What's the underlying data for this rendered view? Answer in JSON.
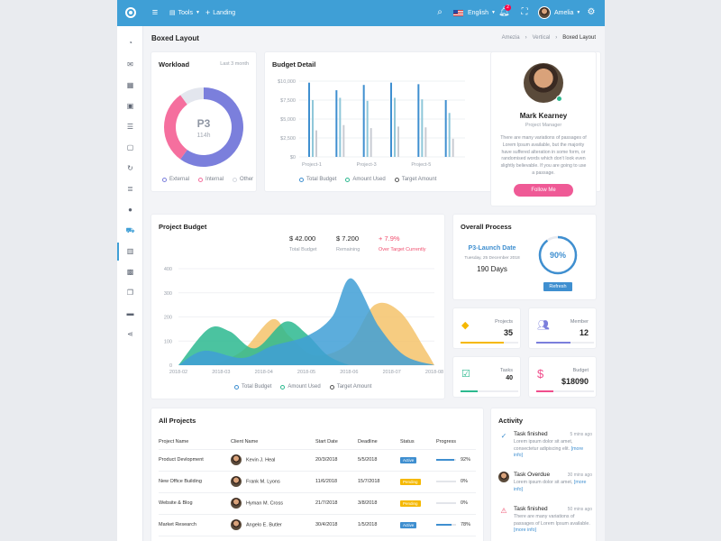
{
  "topbar": {
    "tools": "Tools",
    "landing": "Landing",
    "language": "English",
    "notification_count": "2",
    "user_name": "Amelia"
  },
  "page": {
    "title": "Boxed Layout",
    "breadcrumb": [
      "Amezia",
      "Vertical",
      "Boxed Layout"
    ]
  },
  "workload": {
    "title": "Workload",
    "period": "Last 3 month",
    "center_main": "P3",
    "center_sub": "114h",
    "legend": [
      "External",
      "Internal",
      "Other"
    ],
    "colors": {
      "external": "#7b7fdc",
      "internal": "#f56f9e",
      "other": "#e3e6ee"
    }
  },
  "budget_detail": {
    "title": "Budget Detail",
    "legend": [
      "Total Budget",
      "Amount Used",
      "Target Amount"
    ]
  },
  "profile": {
    "name": "Mark Kearney",
    "role": "Project Manager",
    "bio": "There are many variations of passages of Lorem Ipsum available, but the majority have suffered alteration in some form, or randomised words which don't look even slightly believable. If you are going to use a passage.",
    "follow_label": "Follow Me"
  },
  "project_budget": {
    "title": "Project Budget",
    "stats": [
      {
        "value": "$ 42.000",
        "label": "Total Budget"
      },
      {
        "value": "$ 7.200",
        "label": "Remaining"
      },
      {
        "value": "+ 7.9%",
        "label": "Over Target Currently"
      }
    ],
    "legend": [
      "Total Budget",
      "Amount Used",
      "Target Amount"
    ]
  },
  "overall": {
    "title": "Overall Process",
    "launch_title": "P3-Launch Date",
    "launch_date": "Tuesday, 25 December 2018",
    "days": "190 Days",
    "percent_label": "90%",
    "percent_value": 90,
    "refresh_label": "Refresh"
  },
  "stats": [
    {
      "label": "Projects",
      "value": "35",
      "icon": "gem-icon",
      "color": "#f5b800",
      "fill": 0.75
    },
    {
      "label": "Member",
      "value": "12",
      "icon": "users-icon",
      "color": "#7b7fdc",
      "fill": 0.6
    },
    {
      "label": "Tasks",
      "value": "40",
      "icon": "checklist-icon",
      "color": "#2cb98f",
      "fill": 0.3
    },
    {
      "label": "Budget",
      "value": "$18090",
      "icon": "dollar-icon",
      "color": "#f04e8c",
      "fill": 0.3
    }
  ],
  "projects": {
    "title": "All Projects",
    "headers": [
      "Project Name",
      "Client Name",
      "Start Date",
      "Deadline",
      "Status",
      "Progress"
    ],
    "rows": [
      {
        "name": "Product Devlopment",
        "client": "Kevin J. Heal",
        "start": "20/3/2018",
        "deadline": "5/5/2018",
        "status": "Active",
        "status_color": "#3f8fd0",
        "progress": 92,
        "progress_label": "92%"
      },
      {
        "name": "New Office Building",
        "client": "Frank M. Lyons",
        "start": "11/6/2018",
        "deadline": "15/7/2018",
        "status": "Pending",
        "status_color": "#f5b800",
        "progress": 0,
        "progress_label": "0%"
      },
      {
        "name": "Website & Blog",
        "client": "Hyman M. Cross",
        "start": "21/7/2018",
        "deadline": "3/8/2018",
        "status": "Pending",
        "status_color": "#f5b800",
        "progress": 0,
        "progress_label": "0%"
      },
      {
        "name": "Market Research",
        "client": "Angelo E. Butler",
        "start": "30/4/2018",
        "deadline": "1/5/2018",
        "status": "Active",
        "status_color": "#3f8fd0",
        "progress": 78,
        "progress_label": "78%"
      }
    ]
  },
  "activity": {
    "title": "Activity",
    "items": [
      {
        "title": "Task finished",
        "time": "5 mins ago",
        "desc": "Lorem ipsum dolor sit amet, consectetur adipiscing elit.",
        "link": "[more info]",
        "icon": "check-icon",
        "color": "#3f8fd0"
      },
      {
        "title": "Task Overdue",
        "time": "30 mins ago",
        "desc": "Lorem ipsum dolor sit amet,",
        "link": "[more info]",
        "icon": "avatar",
        "color": "#333"
      },
      {
        "title": "Task finished",
        "time": "50 mins ago",
        "desc": "There are many variations of passages of Lorem Ipsum available.",
        "link": "[more info]",
        "icon": "warning-icon",
        "color": "#f04e6e"
      }
    ]
  },
  "chart_data": [
    {
      "type": "pie",
      "title": "Workload",
      "categories": [
        "External",
        "Internal",
        "Other"
      ],
      "values": [
        60,
        30,
        10
      ]
    },
    {
      "type": "bar",
      "title": "Budget Detail",
      "ylabels": [
        "$10,000",
        "$7,500",
        "$5,000",
        "$2,500",
        "$0"
      ],
      "ylim": [
        0,
        10000
      ],
      "categories": [
        "Project-1",
        "",
        "Project-3",
        "",
        "Project-5",
        ""
      ],
      "series": [
        {
          "name": "Total Budget",
          "values": [
            9800,
            8800,
            9500,
            9800,
            9600,
            7500
          ],
          "color": "#3f8fd0"
        },
        {
          "name": "Amount Used",
          "values": [
            7500,
            7800,
            7400,
            7800,
            7600,
            5800
          ],
          "color": "#8fc7d9"
        },
        {
          "name": "Target Amount",
          "values": [
            3500,
            4200,
            3800,
            4000,
            3900,
            2400
          ],
          "color": "#c9ccd3"
        }
      ]
    },
    {
      "type": "area",
      "title": "Project Budget",
      "x": [
        "2018-02",
        "2018-03",
        "2018-04",
        "2018-05",
        "2018-06",
        "2018-07",
        "2018-08"
      ],
      "ylabels": [
        "400",
        "300",
        "200",
        "100",
        "0"
      ],
      "ylim": [
        0,
        400
      ],
      "series": [
        {
          "name": "Total Budget",
          "color": "#3f9fd6",
          "points": [
            [
              0,
              0
            ],
            [
              0.6,
              60
            ],
            [
              1.5,
              30
            ],
            [
              2.2,
              80
            ],
            [
              3,
              120
            ],
            [
              3.6,
              200
            ],
            [
              4.05,
              360
            ],
            [
              4.7,
              160
            ],
            [
              5.3,
              40
            ],
            [
              6,
              0
            ]
          ]
        },
        {
          "name": "Amount Used",
          "color": "#2cb98f",
          "points": [
            [
              0,
              0
            ],
            [
              0.7,
              150
            ],
            [
              1.2,
              140
            ],
            [
              1.8,
              70
            ],
            [
              2.5,
              180
            ],
            [
              3,
              130
            ],
            [
              3.5,
              40
            ],
            [
              4,
              0
            ]
          ]
        },
        {
          "name": "Target Amount",
          "color": "#f5c36b",
          "points": [
            [
              0.8,
              0
            ],
            [
              1.5,
              60
            ],
            [
              2.2,
              190
            ],
            [
              2.6,
              120
            ],
            [
              3.2,
              40
            ],
            [
              4,
              90
            ],
            [
              4.6,
              250
            ],
            [
              5.2,
              220
            ],
            [
              5.8,
              60
            ],
            [
              6,
              0
            ]
          ]
        }
      ]
    }
  ]
}
